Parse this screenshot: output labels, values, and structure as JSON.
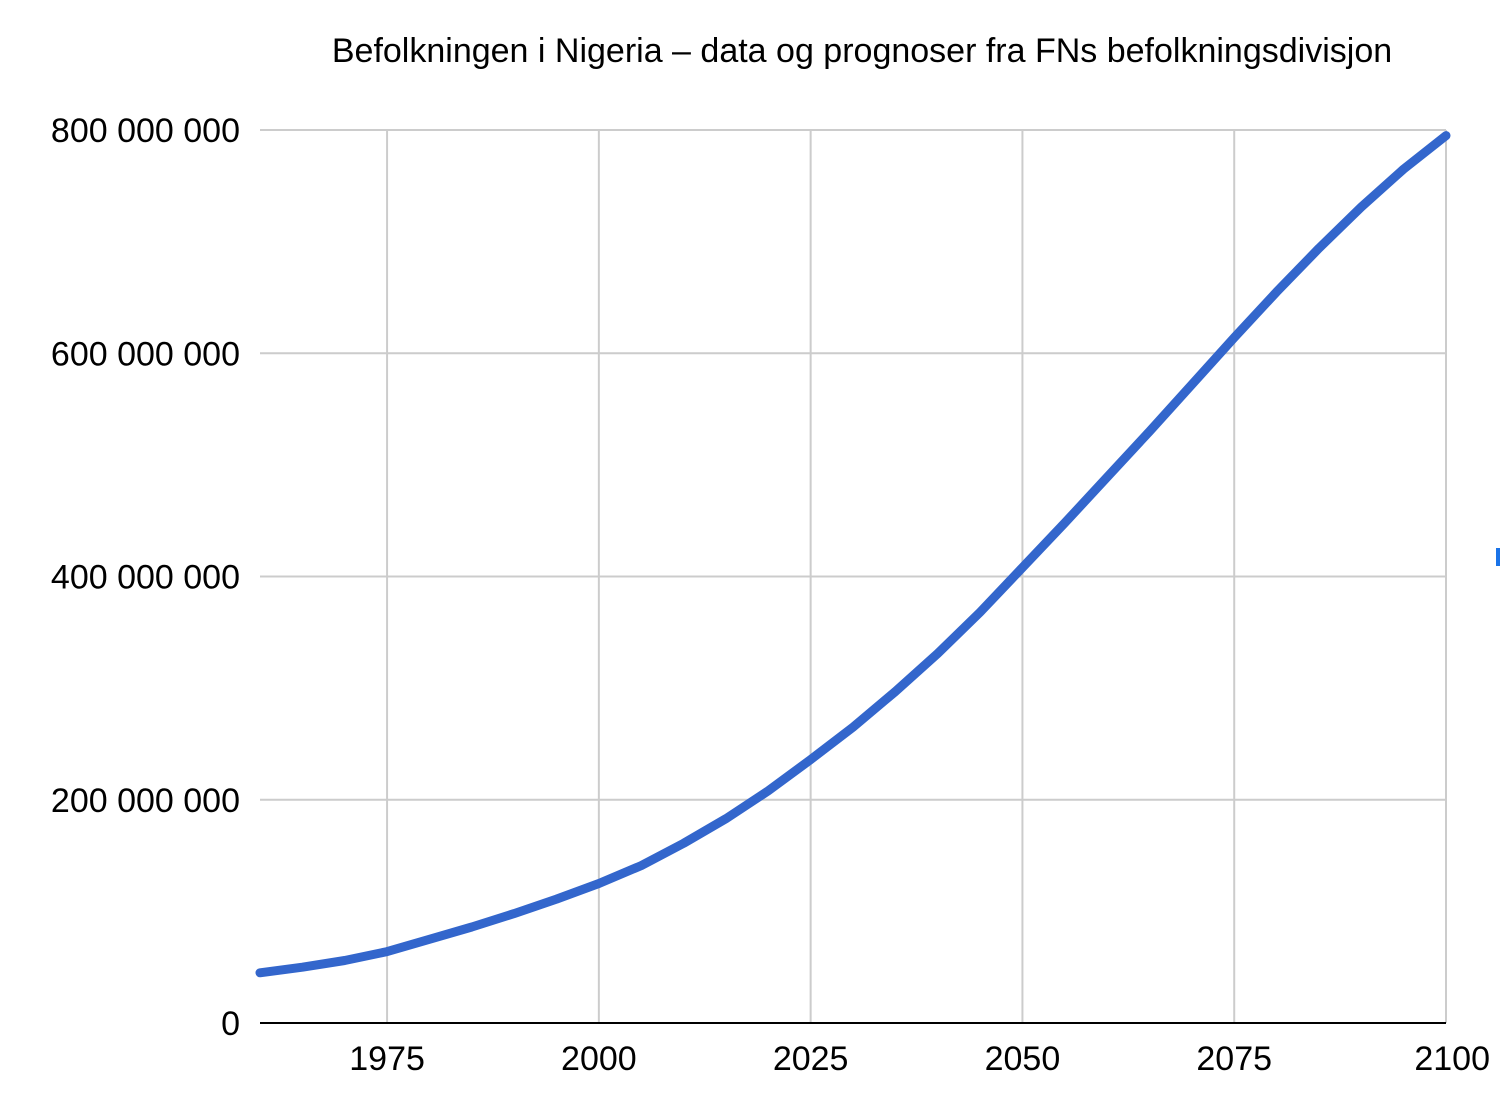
{
  "chart_data": {
    "type": "line",
    "title": "Befolkningen i Nigeria – data og prognoser fra FNs befolkningsdivisjon",
    "xlabel": "",
    "ylabel": "",
    "xlim": [
      1960,
      2100
    ],
    "ylim": [
      0,
      800000000
    ],
    "x_ticks": [
      1975,
      2000,
      2025,
      2050,
      2075,
      2100
    ],
    "x_tick_labels": [
      "1975",
      "2000",
      "2025",
      "2050",
      "2075",
      "2100"
    ],
    "y_ticks": [
      0,
      200000000,
      400000000,
      600000000,
      800000000
    ],
    "y_tick_labels": [
      "0",
      "200 000 000",
      "400 000 000",
      "600 000 000",
      "800 000 000"
    ],
    "grid": true,
    "legend": "none",
    "series": [
      {
        "color": "#3366cc",
        "x": [
          1960,
          1965,
          1970,
          1975,
          1980,
          1985,
          1990,
          1995,
          2000,
          2005,
          2010,
          2015,
          2020,
          2025,
          2030,
          2035,
          2040,
          2045,
          2050,
          2055,
          2060,
          2065,
          2070,
          2075,
          2080,
          2085,
          2090,
          2095,
          2100
        ],
        "values": [
          45000000,
          50000000,
          56000000,
          64000000,
          75000000,
          86000000,
          98000000,
          111000000,
          125000000,
          141000000,
          161000000,
          183000000,
          208000000,
          236000000,
          265000000,
          297000000,
          331000000,
          368000000,
          408000000,
          448000000,
          489000000,
          530000000,
          572000000,
          614000000,
          655000000,
          694000000,
          731000000,
          765000000,
          795000000
        ]
      }
    ],
    "edge_marker_color": "#1a73e8"
  }
}
